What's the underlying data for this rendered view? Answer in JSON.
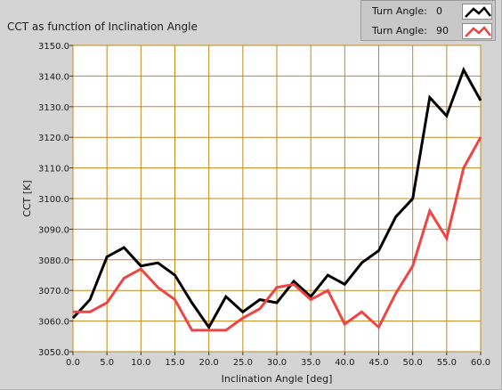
{
  "chart_data": {
    "type": "line",
    "title": "CCT as function of Inclination Angle",
    "xlabel": "Inclination Angle [deg]",
    "ylabel": "CCT [K]",
    "xlim": [
      0,
      60
    ],
    "ylim": [
      3050,
      3150
    ],
    "xticks": [
      0,
      5,
      10,
      15,
      20,
      25,
      30,
      35,
      40,
      45,
      50,
      55,
      60
    ],
    "xtick_labels": [
      "0.0",
      "5.0",
      "10.0",
      "15.0",
      "20.0",
      "25.0",
      "30.0",
      "35.0",
      "40.0",
      "45.0",
      "50.0",
      "55.0",
      "60.0"
    ],
    "yticks": [
      3050,
      3060,
      3070,
      3080,
      3090,
      3100,
      3110,
      3120,
      3130,
      3140,
      3150
    ],
    "ytick_labels": [
      "3050.0",
      "3060.0",
      "3070.0",
      "3080.0",
      "3090.0",
      "3100.0",
      "3110.0",
      "3120.0",
      "3130.0",
      "3140.0",
      "3150.0"
    ],
    "grid": true,
    "x": [
      0,
      2.5,
      5,
      7.5,
      10,
      12.5,
      15,
      17.5,
      20,
      22.5,
      25,
      27.5,
      30,
      32.5,
      35,
      37.5,
      40,
      42.5,
      45,
      47.5,
      50,
      52.5,
      55,
      57.5,
      60
    ],
    "series": [
      {
        "name": "Turn Angle: 0",
        "legend_label": "Turn Angle:",
        "legend_value": "0",
        "color": "#000000",
        "values": [
          3061,
          3067,
          3081,
          3084,
          3078,
          3079,
          3075,
          3066,
          3058,
          3068,
          3063,
          3067,
          3066,
          3073,
          3068,
          3075,
          3072,
          3079,
          3083,
          3094,
          3100,
          3133,
          3127,
          3142,
          3132
        ]
      },
      {
        "name": "Turn Angle: 90",
        "legend_label": "Turn Angle:",
        "legend_value": "90",
        "color": "#ee4444",
        "values": [
          3063,
          3063,
          3066,
          3074,
          3077,
          3071,
          3067,
          3057,
          3057,
          3057,
          3061,
          3064,
          3071,
          3072,
          3067,
          3070,
          3059,
          3063,
          3058,
          3069,
          3078,
          3096,
          3087,
          3110,
          3120
        ]
      }
    ],
    "legend_position": "top-right",
    "colors": {
      "background": "#ffffff",
      "grid": "#c08a1a",
      "panel": "#d4d4d4"
    }
  }
}
